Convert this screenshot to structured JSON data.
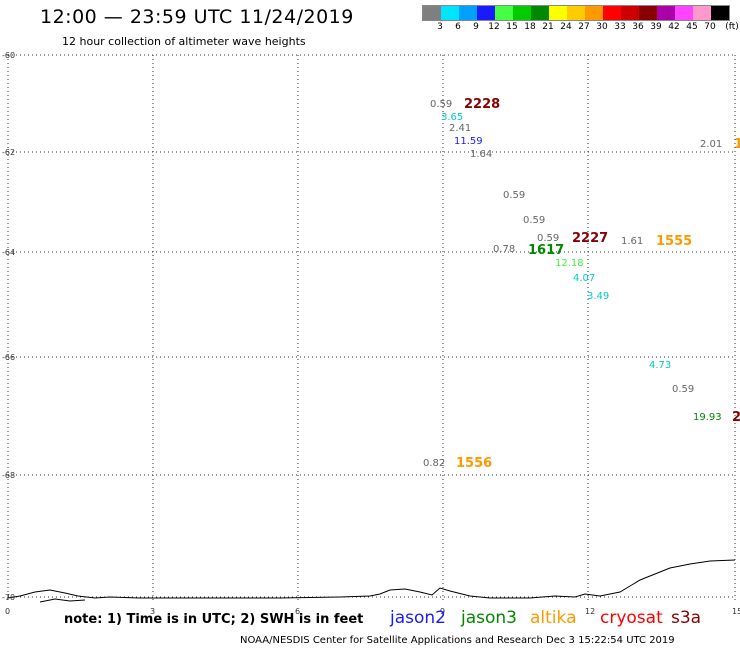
{
  "header": {
    "title": "12:00 — 23:59 UTC 11/24/2019",
    "subtitle": "12 hour collection of altimeter wave heights"
  },
  "legend": {
    "colors": [
      "#7f7f7f",
      "#00e5ff",
      "#00a0ff",
      "#1a1aff",
      "#44ff44",
      "#00cc00",
      "#008800",
      "#ffff00",
      "#ffcc00",
      "#ff9900",
      "#ff0000",
      "#cc0000",
      "#880000",
      "#aa00aa",
      "#ff44ff",
      "#ff99cc",
      "#000000"
    ],
    "labels": [
      "3",
      "6",
      "9",
      "12",
      "15",
      "18",
      "21",
      "24",
      "27",
      "30",
      "33",
      "36",
      "39",
      "42",
      "45",
      "70",
      "(ft)"
    ]
  },
  "axes": {
    "y_labels": [
      "-60",
      "-62",
      "-64",
      "-66",
      "-68",
      "-70"
    ],
    "x_labels": [
      "0",
      "3",
      "6",
      "9",
      "12",
      "15"
    ]
  },
  "observations": [
    {
      "text": "0.59",
      "color": "#666666"
    },
    {
      "text": "3.65",
      "color": "#00cccc"
    },
    {
      "text": "2.41",
      "color": "#666666"
    },
    {
      "text": "11.59",
      "color": "#1a1aff"
    },
    {
      "text": "1.64",
      "color": "#666666"
    },
    {
      "text": "0.59",
      "color": "#666666"
    },
    {
      "text": "0.59",
      "color": "#666666"
    },
    {
      "text": "0.59",
      "color": "#666666"
    },
    {
      "text": "0.78",
      "color": "#666666"
    },
    {
      "text": "12.18",
      "color": "#44ee44"
    },
    {
      "text": "4.07",
      "color": "#00cccc"
    },
    {
      "text": "3.49",
      "color": "#00cccc"
    },
    {
      "text": "1.61",
      "color": "#666666"
    },
    {
      "text": "2.01",
      "color": "#666666"
    },
    {
      "text": "4.73",
      "color": "#00cccc"
    },
    {
      "text": "0.59",
      "color": "#666666"
    },
    {
      "text": "19.93",
      "color": "#008800"
    },
    {
      "text": "0.82",
      "color": "#666666"
    }
  ],
  "pass_labels": [
    {
      "text": "2228",
      "color": "#880000"
    },
    {
      "text": "2227",
      "color": "#880000"
    },
    {
      "text": "1617",
      "color": "#008800"
    },
    {
      "text": "1555",
      "color": "#ff9900"
    },
    {
      "text": "1556",
      "color": "#ff9900"
    },
    {
      "text": "1",
      "color": "#ff9900"
    },
    {
      "text": "2",
      "color": "#880000"
    }
  ],
  "footer": {
    "note": "note: 1) Time is in UTC; 2) SWH is in feet",
    "satellites": [
      {
        "name": "jason2",
        "color": "#1a1aff"
      },
      {
        "name": "jason3",
        "color": "#008800"
      },
      {
        "name": "altika",
        "color": "#ff9900"
      },
      {
        "name": "cryosat",
        "color": "#ff0000"
      },
      {
        "name": "s3a",
        "color": "#880000"
      }
    ],
    "credit": "NOAA/NESDIS Center for Satellite Applications and Research    Dec  3 15:22:54 UTC 2019"
  }
}
